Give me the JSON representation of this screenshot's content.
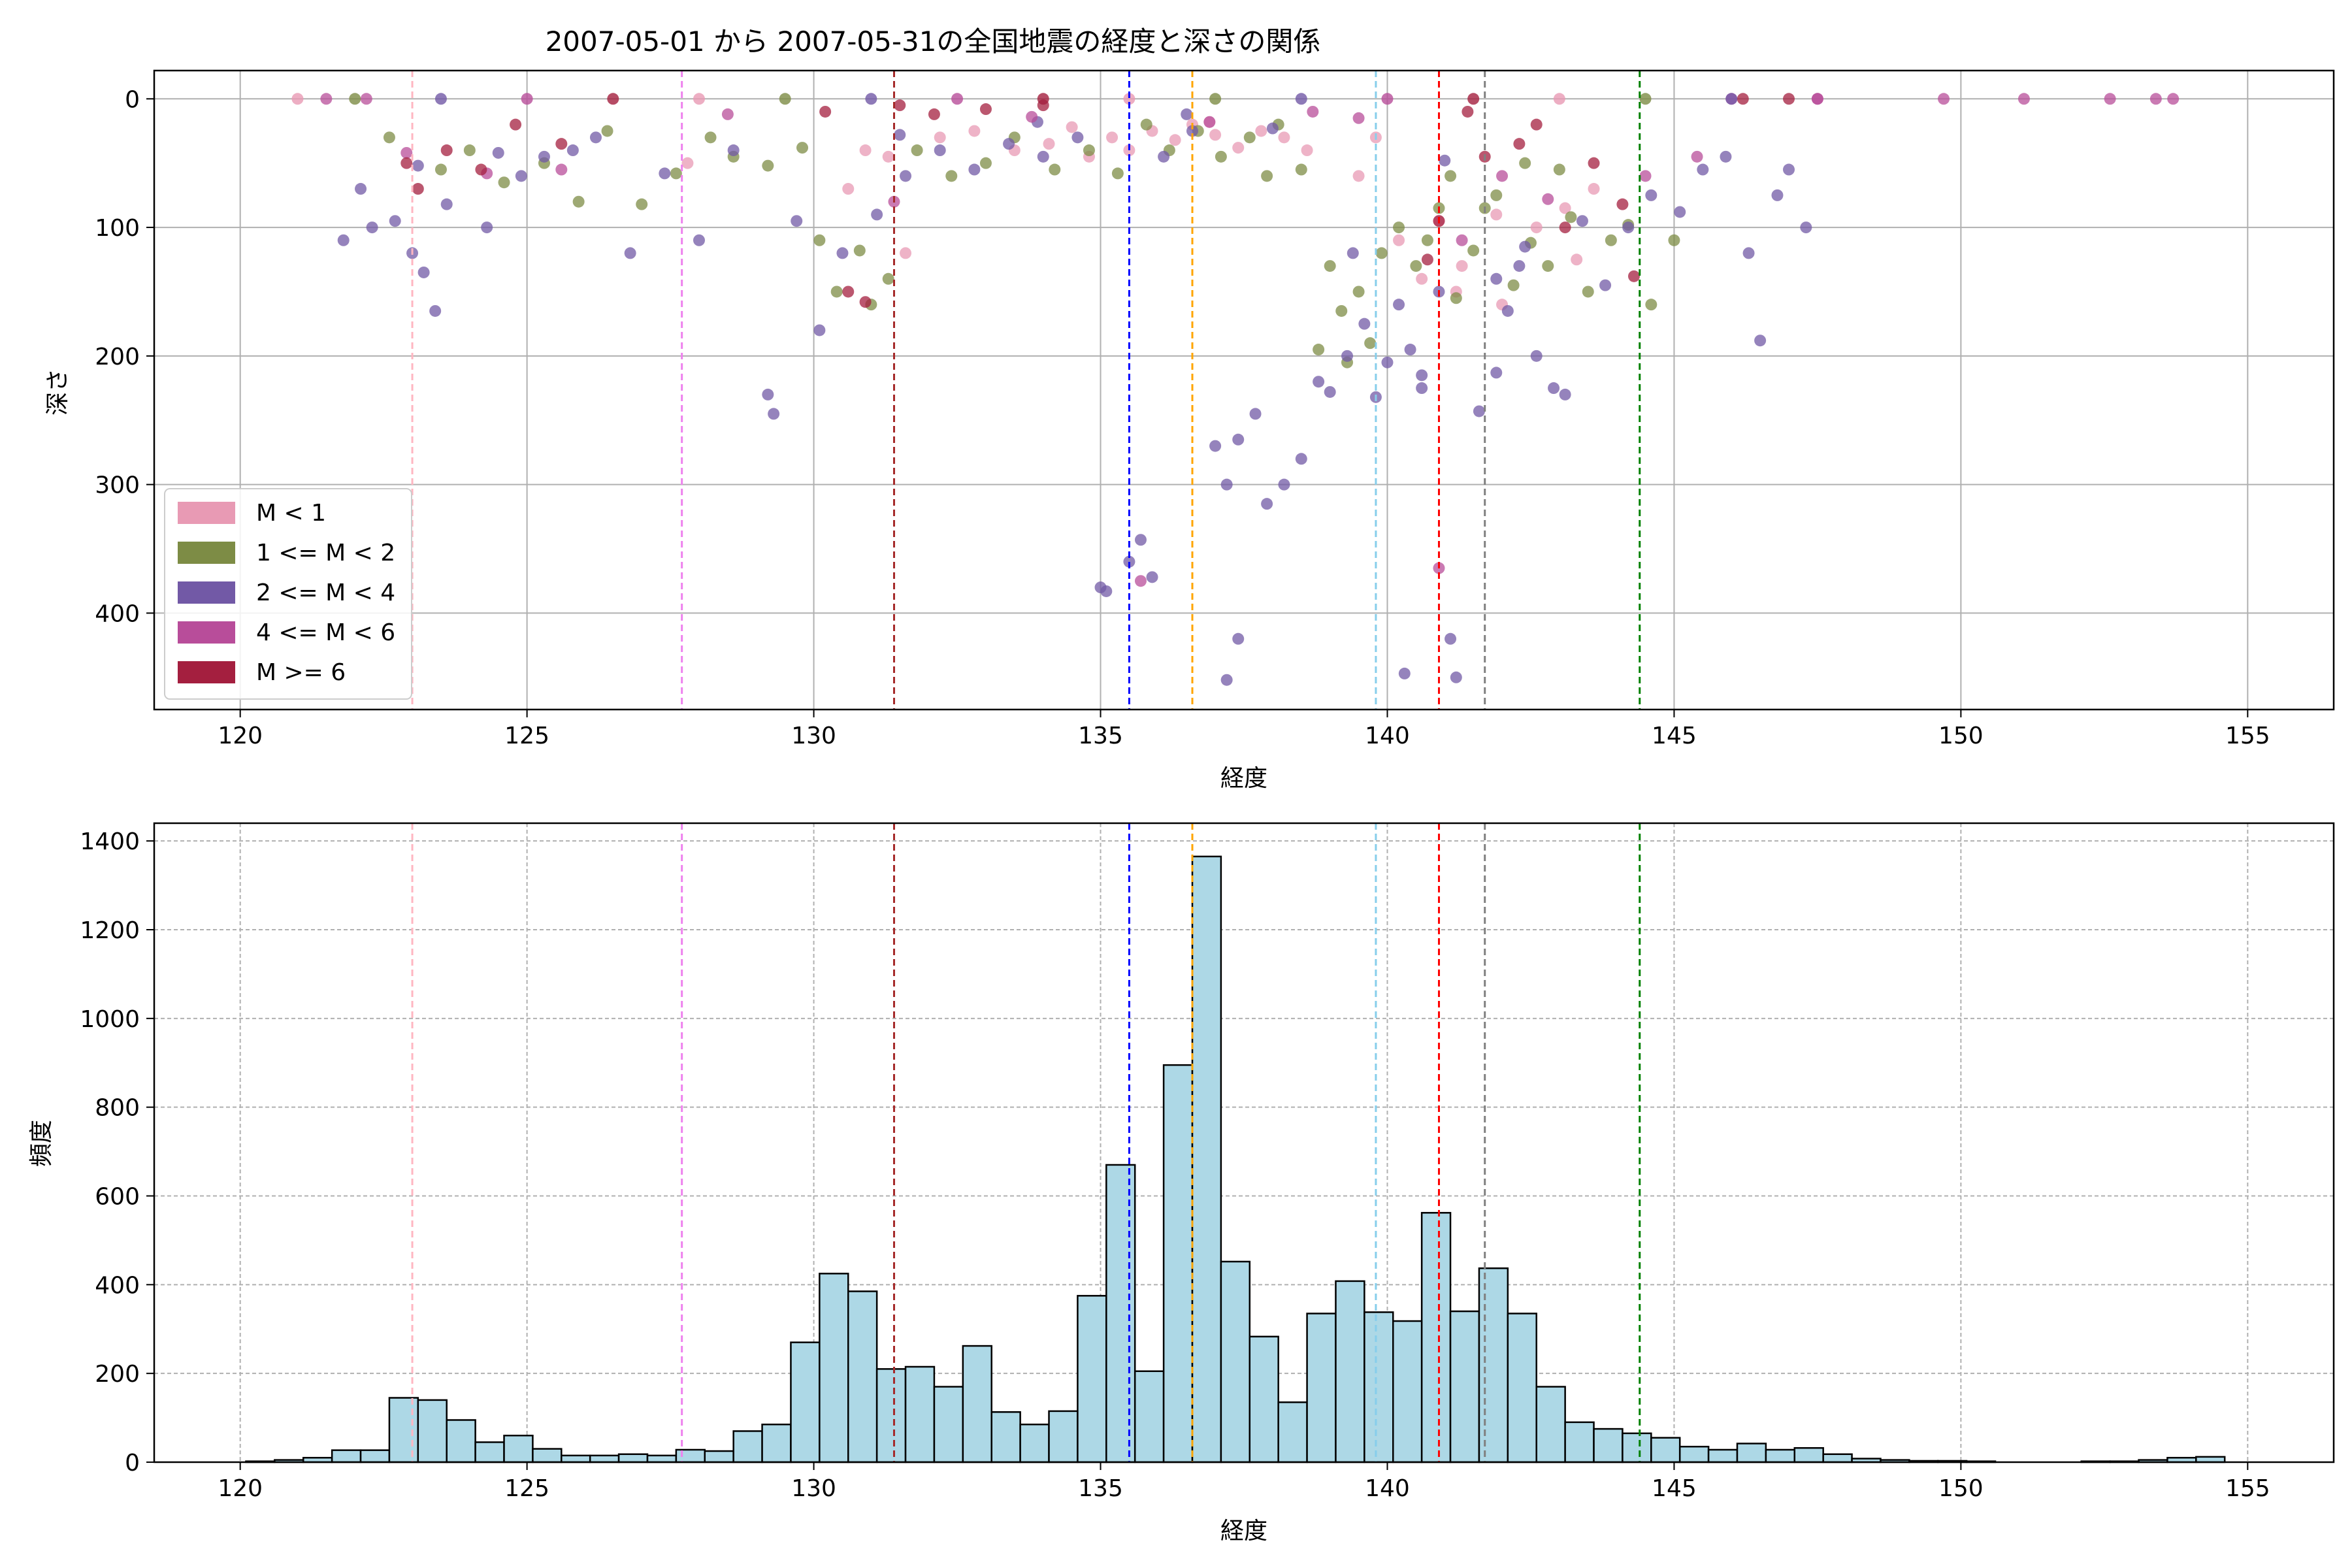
{
  "figure_title": "2007-05-01 から 2007-05-31の全国地震の経度と深さの関係",
  "colors": {
    "pink": "#e89ab4",
    "olive": "#7d8c45",
    "purple": "#7259a6",
    "magenta": "#b84d9a",
    "crimson": "#a41f3f",
    "hist_fill": "#add8e6",
    "hist_edge": "#000000",
    "grid": "#b0b0b0"
  },
  "chart_data": [
    {
      "type": "scatter",
      "title": "2007-05-01 から 2007-05-31の全国地震の経度と深さの関係",
      "xlabel": "経度",
      "ylabel": "深さ",
      "xlim": [
        118.5,
        156.5
      ],
      "ylim": [
        475,
        -22
      ],
      "y_inverted": true,
      "grid": true,
      "xticks": [
        120,
        125,
        130,
        135,
        140,
        145,
        150,
        155
      ],
      "yticks": [
        0,
        100,
        200,
        300,
        400
      ],
      "legend_position": "lower-left",
      "series": [
        {
          "name": "M < 1",
          "color": "#e89ab4",
          "points": [
            [
              130.6,
              70
            ],
            [
              131.6,
              120
            ],
            [
              132.2,
              30
            ],
            [
              133.5,
              40
            ],
            [
              134.1,
              35
            ],
            [
              134.8,
              45
            ],
            [
              135.2,
              30
            ],
            [
              135.9,
              25
            ],
            [
              136.3,
              32
            ],
            [
              136.6,
              20
            ],
            [
              137.0,
              28
            ],
            [
              137.4,
              38
            ],
            [
              137.8,
              25
            ],
            [
              138.2,
              30
            ],
            [
              138.6,
              40
            ],
            [
              139.5,
              60
            ],
            [
              140.2,
              110
            ],
            [
              140.6,
              140
            ],
            [
              141.3,
              130
            ],
            [
              141.9,
              90
            ],
            [
              142.6,
              100
            ],
            [
              143.1,
              85
            ],
            [
              143.6,
              70
            ],
            [
              130.9,
              40
            ],
            [
              131.3,
              45
            ],
            [
              132.8,
              25
            ],
            [
              127.8,
              50
            ],
            [
              141.2,
              150
            ],
            [
              142.0,
              160
            ],
            [
              139.8,
              30
            ],
            [
              140.9,
              95
            ],
            [
              143.3,
              125
            ],
            [
              135.5,
              40
            ],
            [
              136.9,
              18
            ],
            [
              134.5,
              22
            ]
          ]
        },
        {
          "name": "1 <= M < 2",
          "color": "#7d8c45",
          "points": [
            [
              122.6,
              30
            ],
            [
              123.5,
              55
            ],
            [
              124.0,
              40
            ],
            [
              124.6,
              65
            ],
            [
              125.3,
              50
            ],
            [
              125.9,
              80
            ],
            [
              126.4,
              25
            ],
            [
              127.0,
              82
            ],
            [
              127.6,
              58
            ],
            [
              128.2,
              30
            ],
            [
              128.6,
              45
            ],
            [
              129.2,
              52
            ],
            [
              129.8,
              38
            ],
            [
              130.1,
              110
            ],
            [
              130.4,
              150
            ],
            [
              130.8,
              118
            ],
            [
              131.3,
              140
            ],
            [
              131.0,
              160
            ],
            [
              131.8,
              40
            ],
            [
              132.4,
              60
            ],
            [
              133.0,
              50
            ],
            [
              133.5,
              30
            ],
            [
              134.2,
              55
            ],
            [
              134.8,
              40
            ],
            [
              135.3,
              58
            ],
            [
              135.8,
              20
            ],
            [
              136.2,
              40
            ],
            [
              136.7,
              25
            ],
            [
              137.1,
              45
            ],
            [
              137.6,
              30
            ],
            [
              138.1,
              20
            ],
            [
              138.5,
              55
            ],
            [
              139.0,
              130
            ],
            [
              139.2,
              165
            ],
            [
              139.5,
              150
            ],
            [
              139.7,
              190
            ],
            [
              139.9,
              120
            ],
            [
              140.2,
              100
            ],
            [
              140.5,
              130
            ],
            [
              140.7,
              110
            ],
            [
              140.9,
              85
            ],
            [
              141.2,
              155
            ],
            [
              141.5,
              118
            ],
            [
              141.9,
              75
            ],
            [
              142.2,
              145
            ],
            [
              142.5,
              112
            ],
            [
              142.8,
              130
            ],
            [
              143.2,
              92
            ],
            [
              143.5,
              150
            ],
            [
              143.9,
              110
            ],
            [
              144.2,
              98
            ],
            [
              144.6,
              160
            ],
            [
              145.0,
              110
            ],
            [
              138.8,
              195
            ],
            [
              139.3,
              205
            ],
            [
              137.9,
              60
            ],
            [
              141.1,
              60
            ],
            [
              141.7,
              85
            ],
            [
              142.4,
              50
            ],
            [
              143.0,
              55
            ]
          ]
        },
        {
          "name": "2 <= M < 4",
          "color": "#7259a6",
          "points": [
            [
              121.8,
              110
            ],
            [
              122.1,
              70
            ],
            [
              122.3,
              100
            ],
            [
              122.7,
              95
            ],
            [
              123.0,
              120
            ],
            [
              123.2,
              135
            ],
            [
              123.4,
              165
            ],
            [
              123.1,
              52
            ],
            [
              123.6,
              82
            ],
            [
              124.3,
              100
            ],
            [
              124.5,
              42
            ],
            [
              124.9,
              60
            ],
            [
              125.3,
              45
            ],
            [
              125.8,
              40
            ],
            [
              126.2,
              30
            ],
            [
              126.8,
              120
            ],
            [
              127.4,
              58
            ],
            [
              128.0,
              110
            ],
            [
              128.6,
              40
            ],
            [
              129.2,
              230
            ],
            [
              129.3,
              245
            ],
            [
              129.7,
              95
            ],
            [
              130.1,
              180
            ],
            [
              130.5,
              120
            ],
            [
              131.1,
              90
            ],
            [
              131.6,
              60
            ],
            [
              132.2,
              40
            ],
            [
              132.8,
              55
            ],
            [
              133.4,
              35
            ],
            [
              134.0,
              45
            ],
            [
              134.6,
              30
            ],
            [
              135.0,
              380
            ],
            [
              135.1,
              383
            ],
            [
              135.5,
              360
            ],
            [
              135.7,
              343
            ],
            [
              135.9,
              372
            ],
            [
              136.1,
              45
            ],
            [
              136.6,
              25
            ],
            [
              137.0,
              270
            ],
            [
              137.2,
              300
            ],
            [
              137.4,
              265
            ],
            [
              137.7,
              245
            ],
            [
              137.9,
              315
            ],
            [
              138.2,
              300
            ],
            [
              138.5,
              280
            ],
            [
              138.8,
              220
            ],
            [
              139.0,
              228
            ],
            [
              139.3,
              200
            ],
            [
              139.6,
              175
            ],
            [
              139.8,
              232
            ],
            [
              140.0,
              205
            ],
            [
              140.2,
              160
            ],
            [
              140.4,
              195
            ],
            [
              140.6,
              225
            ],
            [
              140.9,
              150
            ],
            [
              141.1,
              420
            ],
            [
              141.2,
              450
            ],
            [
              141.6,
              243
            ],
            [
              141.9,
              140
            ],
            [
              142.1,
              165
            ],
            [
              142.3,
              130
            ],
            [
              142.6,
              200
            ],
            [
              142.9,
              225
            ],
            [
              143.1,
              230
            ],
            [
              143.4,
              95
            ],
            [
              143.8,
              145
            ],
            [
              144.2,
              100
            ],
            [
              144.6,
              75
            ],
            [
              145.1,
              88
            ],
            [
              145.5,
              55
            ],
            [
              145.9,
              45
            ],
            [
              146.3,
              120
            ],
            [
              146.5,
              188
            ],
            [
              146.8,
              75
            ],
            [
              147.0,
              55
            ],
            [
              147.3,
              100
            ],
            [
              137.4,
              420
            ],
            [
              137.2,
              452
            ],
            [
              140.3,
              447
            ],
            [
              141.9,
              213
            ],
            [
              140.6,
              215
            ],
            [
              142.4,
              115
            ],
            [
              141.0,
              48
            ],
            [
              139.4,
              120
            ],
            [
              131.5,
              28
            ],
            [
              133.9,
              18
            ],
            [
              138.0,
              23
            ],
            [
              136.5,
              12
            ]
          ]
        },
        {
          "name": "4 <= M < 6",
          "color": "#b84d9a",
          "points": [
            [
              121.5,
              0
            ],
            [
              122.2,
              0
            ],
            [
              122.9,
              42
            ],
            [
              124.3,
              58
            ],
            [
              125.6,
              55
            ],
            [
              128.5,
              12
            ],
            [
              131.4,
              80
            ],
            [
              133.8,
              14
            ],
            [
              135.7,
              375
            ],
            [
              136.9,
              18
            ],
            [
              138.7,
              10
            ],
            [
              139.5,
              15
            ],
            [
              140.9,
              365
            ],
            [
              141.3,
              110
            ],
            [
              142.0,
              60
            ],
            [
              142.8,
              78
            ],
            [
              144.5,
              60
            ],
            [
              145.4,
              45
            ],
            [
              149.7,
              0
            ],
            [
              151.1,
              0
            ],
            [
              152.6,
              0
            ],
            [
              153.4,
              0
            ],
            [
              153.7,
              0
            ],
            [
              146.0,
              0
            ],
            [
              147.5,
              0
            ]
          ]
        },
        {
          "name": "M >= 6",
          "color": "#a41f3f",
          "points": [
            [
              122.9,
              50
            ],
            [
              123.1,
              70
            ],
            [
              123.6,
              40
            ],
            [
              124.2,
              55
            ],
            [
              124.8,
              20
            ],
            [
              125.6,
              35
            ],
            [
              130.2,
              10
            ],
            [
              130.6,
              150
            ],
            [
              130.9,
              158
            ],
            [
              131.5,
              5
            ],
            [
              132.1,
              12
            ],
            [
              133.0,
              8
            ],
            [
              140.7,
              125
            ],
            [
              140.9,
              95
            ],
            [
              141.4,
              10
            ],
            [
              142.3,
              35
            ],
            [
              143.1,
              100
            ],
            [
              143.6,
              50
            ],
            [
              144.3,
              138
            ],
            [
              144.1,
              82
            ],
            [
              142.6,
              20
            ],
            [
              141.7,
              45
            ],
            [
              134.0,
              5
            ],
            [
              146.2,
              0
            ],
            [
              147.0,
              0
            ]
          ]
        }
      ],
      "vlines": [
        {
          "x": 123.0,
          "color": "#ffb6c1"
        },
        {
          "x": 127.7,
          "color": "#ee82ee"
        },
        {
          "x": 131.4,
          "color": "#a52a2a"
        },
        {
          "x": 135.5,
          "color": "#0000ff"
        },
        {
          "x": 136.6,
          "color": "#ffa500"
        },
        {
          "x": 139.8,
          "color": "#87ceeb"
        },
        {
          "x": 140.9,
          "color": "#ff0000"
        },
        {
          "x": 141.7,
          "color": "#808080"
        },
        {
          "x": 144.4,
          "color": "#008000"
        }
      ]
    },
    {
      "type": "bar",
      "title": "",
      "xlabel": "経度",
      "ylabel": "頻度",
      "xlim": [
        118.5,
        156.5
      ],
      "ylim": [
        0,
        1440
      ],
      "grid": true,
      "xticks": [
        120,
        125,
        130,
        135,
        140,
        145,
        150,
        155
      ],
      "yticks": [
        0,
        200,
        400,
        600,
        800,
        1000,
        1200,
        1400
      ],
      "bin_start": 120.1,
      "bin_width": 0.5,
      "values": [
        2,
        5,
        10,
        27,
        27,
        145,
        140,
        95,
        45,
        60,
        30,
        15,
        15,
        18,
        15,
        28,
        25,
        70,
        85,
        270,
        425,
        385,
        210,
        215,
        170,
        262,
        113,
        85,
        115,
        375,
        670,
        205,
        895,
        1365,
        452,
        283,
        135,
        335,
        408,
        338,
        318,
        562,
        340,
        437,
        335,
        170,
        90,
        75,
        65,
        55,
        35,
        28,
        42,
        28,
        32,
        18,
        8,
        5,
        3,
        3,
        2,
        0,
        0,
        0,
        2,
        2,
        5,
        10,
        12,
        0,
        0,
        0
      ],
      "vlines": [
        {
          "x": 123.0,
          "color": "#ffb6c1"
        },
        {
          "x": 127.7,
          "color": "#ee82ee"
        },
        {
          "x": 131.4,
          "color": "#a52a2a"
        },
        {
          "x": 135.5,
          "color": "#0000ff"
        },
        {
          "x": 136.6,
          "color": "#ffa500"
        },
        {
          "x": 139.8,
          "color": "#87ceeb"
        },
        {
          "x": 140.9,
          "color": "#ff0000"
        },
        {
          "x": 141.7,
          "color": "#808080"
        },
        {
          "x": 144.4,
          "color": "#008000"
        }
      ]
    }
  ]
}
